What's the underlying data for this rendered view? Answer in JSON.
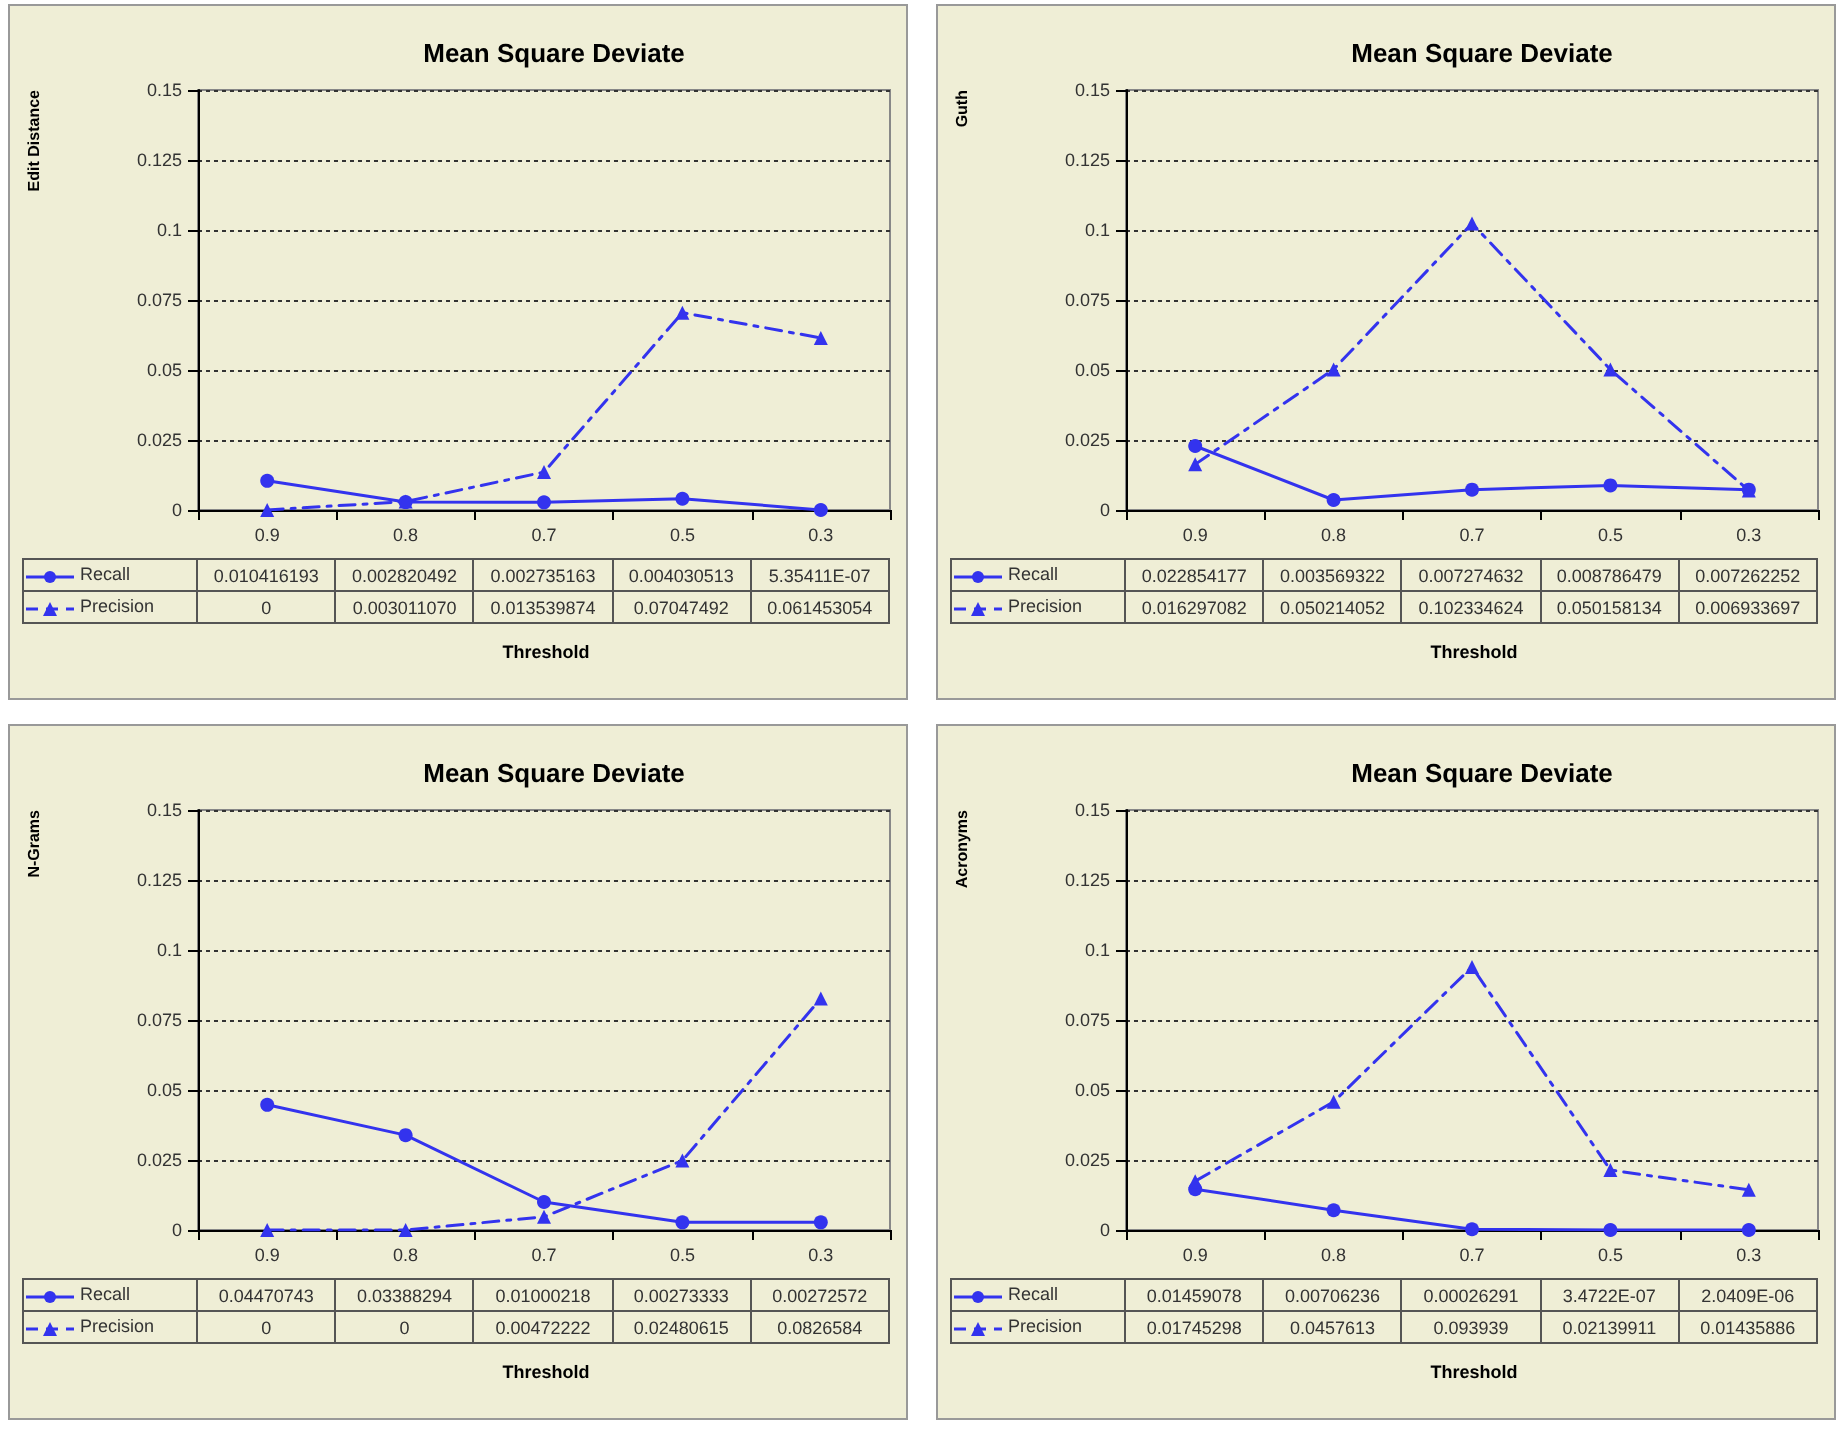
{
  "chart_data": [
    {
      "type": "line",
      "title": "Mean Square Deviate",
      "ylabel": "Edit Distance",
      "xlabel": "Threshold",
      "categories": [
        "0.9",
        "0.8",
        "0.7",
        "0.5",
        "0.3"
      ],
      "ylim": [
        0,
        0.15
      ],
      "yticks": [
        0,
        0.025,
        0.05,
        0.075,
        0.1,
        0.125,
        0.15
      ],
      "grid": "y",
      "legend": "bottom left",
      "series": [
        {
          "name": "Recall",
          "color": "#3333ee",
          "marker": "circle",
          "line_style": "solid",
          "values": [
            0.010416193,
            0.002820492,
            0.002735163,
            0.004030513,
            5.35411e-07
          ],
          "value_labels": [
            "0.010416193",
            "0.002820492",
            "0.002735163",
            "0.004030513",
            "5.35411E-07"
          ]
        },
        {
          "name": "Precision",
          "color": "#3333ee",
          "marker": "triangle",
          "line_style": "dashed",
          "values": [
            0,
            0.00301107,
            0.013539874,
            0.07047492,
            0.061453054
          ],
          "value_labels": [
            "0",
            "0.003011070",
            "0.013539874",
            "0.07047492",
            "0.061453054"
          ]
        }
      ]
    },
    {
      "type": "line",
      "title": "Mean Square Deviate",
      "ylabel": "Guth",
      "xlabel": "Threshold",
      "categories": [
        "0.9",
        "0.8",
        "0.7",
        "0.5",
        "0.3"
      ],
      "ylim": [
        0,
        0.15
      ],
      "yticks": [
        0,
        0.025,
        0.05,
        0.075,
        0.1,
        0.125,
        0.15
      ],
      "grid": "y",
      "legend": "bottom left",
      "series": [
        {
          "name": "Recall",
          "color": "#3333ee",
          "marker": "circle",
          "line_style": "solid",
          "values": [
            0.022854177,
            0.003569322,
            0.007274632,
            0.008786479,
            0.007262252
          ],
          "value_labels": [
            "0.022854177",
            "0.003569322",
            "0.007274632",
            "0.008786479",
            "0.007262252"
          ]
        },
        {
          "name": "Precision",
          "color": "#3333ee",
          "marker": "triangle",
          "line_style": "dashed",
          "values": [
            0.016297082,
            0.050214052,
            0.102334624,
            0.050158134,
            0.006933697
          ],
          "value_labels": [
            "0.016297082",
            "0.050214052",
            "0.102334624",
            "0.050158134",
            "0.006933697"
          ]
        }
      ]
    },
    {
      "type": "line",
      "title": "Mean Square Deviate",
      "ylabel": "N-Grams",
      "xlabel": "Threshold",
      "categories": [
        "0.9",
        "0.8",
        "0.7",
        "0.5",
        "0.3"
      ],
      "ylim": [
        0,
        0.15
      ],
      "yticks": [
        0,
        0.025,
        0.05,
        0.075,
        0.1,
        0.125,
        0.15
      ],
      "grid": "y",
      "legend": "bottom left",
      "series": [
        {
          "name": "Recall",
          "color": "#3333ee",
          "marker": "circle",
          "line_style": "solid",
          "values": [
            0.04470743,
            0.03388294,
            0.01000218,
            0.00273333,
            0.00272572
          ],
          "value_labels": [
            "0.04470743",
            "0.03388294",
            "0.01000218",
            "0.00273333",
            "0.00272572"
          ]
        },
        {
          "name": "Precision",
          "color": "#3333ee",
          "marker": "triangle",
          "line_style": "dashed",
          "values": [
            0,
            0,
            0.00472222,
            0.02480615,
            0.0826584
          ],
          "value_labels": [
            "0",
            "0",
            "0.00472222",
            "0.02480615",
            "0.0826584"
          ]
        }
      ]
    },
    {
      "type": "line",
      "title": "Mean Square Deviate",
      "ylabel": "Acronyms",
      "xlabel": "Threshold",
      "categories": [
        "0.9",
        "0.8",
        "0.7",
        "0.5",
        "0.3"
      ],
      "ylim": [
        0,
        0.15
      ],
      "yticks": [
        0,
        0.025,
        0.05,
        0.075,
        0.1,
        0.125,
        0.15
      ],
      "grid": "y",
      "legend": "bottom left",
      "series": [
        {
          "name": "Recall",
          "color": "#3333ee",
          "marker": "circle",
          "line_style": "solid",
          "values": [
            0.01459078,
            0.00706236,
            0.00026291,
            3.4722e-07,
            2.0409e-06
          ],
          "value_labels": [
            "0.01459078",
            "0.00706236",
            "0.00026291",
            "3.4722E-07",
            "2.0409E-06"
          ]
        },
        {
          "name": "Precision",
          "color": "#3333ee",
          "marker": "triangle",
          "line_style": "dashed",
          "values": [
            0.01745298,
            0.0457613,
            0.093939,
            0.02139911,
            0.01435886
          ],
          "value_labels": [
            "0.01745298",
            "0.0457613",
            "0.093939",
            "0.02139911",
            "0.01435886"
          ]
        }
      ]
    }
  ]
}
